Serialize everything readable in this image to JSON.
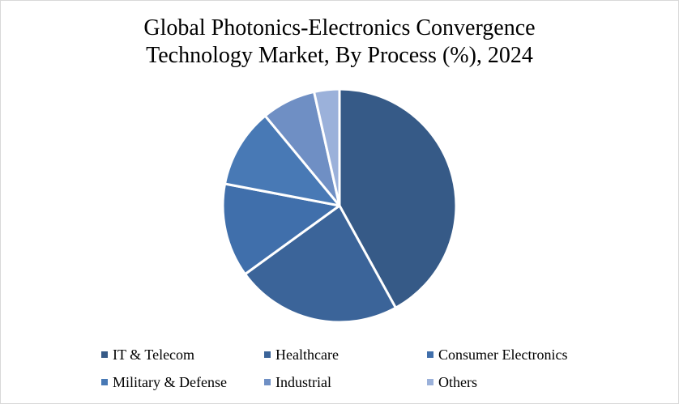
{
  "chart_data": {
    "type": "pie",
    "title_lines": [
      "Global Photonics-Electronics Convergence",
      "Technology Market, By Process (%), 2024"
    ],
    "categories": [
      "IT & Telecom",
      "Healthcare",
      "Consumer Electronics",
      "Military & Defense",
      "Industrial",
      "Others"
    ],
    "values": [
      42,
      23,
      13,
      11,
      7.5,
      3.5
    ],
    "colors": [
      "#365a87",
      "#3b6499",
      "#406fab",
      "#4879b5",
      "#6f8fc4",
      "#9bb1da"
    ],
    "legend_position": "bottom",
    "start_angle_deg": 0,
    "direction": "clockwise"
  }
}
